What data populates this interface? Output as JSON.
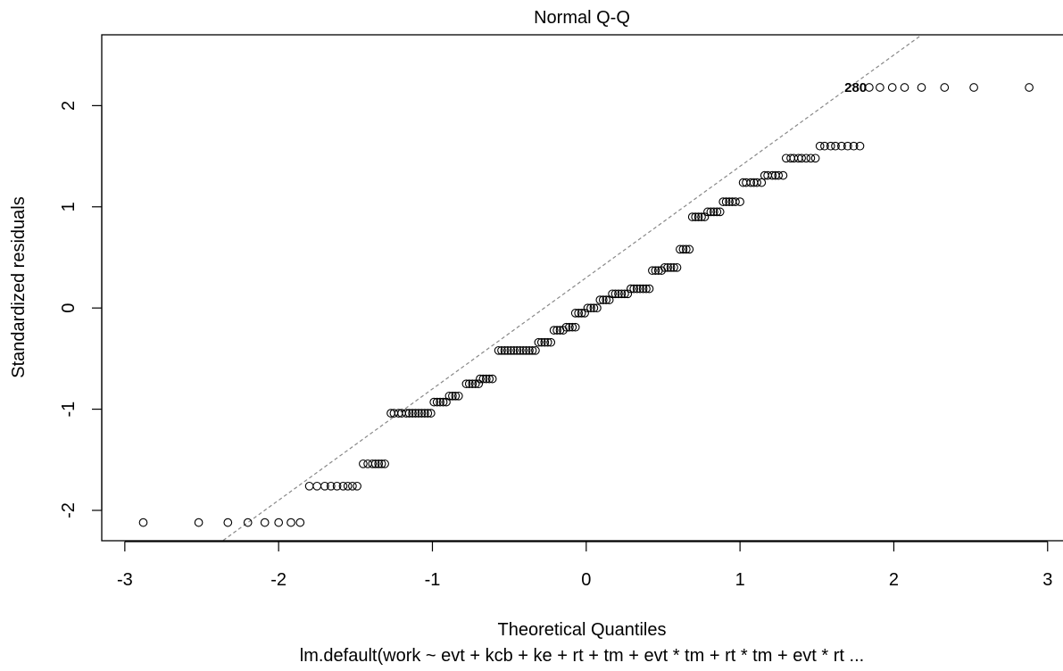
{
  "chart_data": {
    "type": "scatter",
    "title": "Normal Q-Q",
    "xlabel": "Theoretical Quantiles",
    "ylabel": "Standardized residuals",
    "caption": "lm.default(work ~ evt + kcb + ke + rt + tm + evt * tm + rt * tm + evt * rt  ...",
    "xlim": [
      -3.15,
      3.1
    ],
    "ylim": [
      -2.3,
      2.7
    ],
    "xticks": [
      -3,
      -2,
      -1,
      0,
      1,
      2,
      3
    ],
    "xtick_labels": [
      "-3",
      "-2",
      "-1",
      "0",
      "1",
      "2",
      "3"
    ],
    "yticks": [
      -2,
      -1,
      0,
      1,
      2
    ],
    "ytick_labels": [
      "-2",
      "-1",
      "0",
      "1",
      "2"
    ],
    "grid": false,
    "legend": "none",
    "reference_line": {
      "style": "dashed",
      "color": "#888888",
      "intercept": 0.3,
      "slope": 1.1
    },
    "point_labels": [
      {
        "text": "280",
        "x": 1.83,
        "y": 2.18
      }
    ],
    "point_groups": [
      {
        "y": -2.12,
        "x": [
          -2.88,
          -2.52,
          -2.33,
          -2.2,
          -2.09,
          -2.0,
          -1.92,
          -1.86
        ]
      },
      {
        "y": -1.76,
        "x": [
          -1.8,
          -1.75,
          -1.7,
          -1.66,
          -1.62,
          -1.58,
          -1.55,
          -1.52,
          -1.49
        ]
      },
      {
        "y": -1.54,
        "x": [
          -1.45,
          -1.42,
          -1.39,
          -1.37,
          -1.35,
          -1.33,
          -1.31
        ]
      },
      {
        "y": -1.04,
        "x": [
          -1.27,
          -1.25,
          -1.22,
          -1.2,
          -1.17,
          -1.15,
          -1.13,
          -1.11,
          -1.09,
          -1.07,
          -1.05,
          -1.03,
          -1.01
        ]
      },
      {
        "y": -0.93,
        "x": [
          -0.99,
          -0.97,
          -0.95,
          -0.93,
          -0.91
        ]
      },
      {
        "y": -0.87,
        "x": [
          -0.89,
          -0.87,
          -0.85,
          -0.83
        ]
      },
      {
        "y": -0.75,
        "x": [
          -0.78,
          -0.76,
          -0.74,
          -0.72,
          -0.7
        ]
      },
      {
        "y": -0.7,
        "x": [
          -0.69,
          -0.67,
          -0.65,
          -0.63,
          -0.61
        ]
      },
      {
        "y": -0.42,
        "x": [
          -0.57,
          -0.55,
          -0.53,
          -0.51,
          -0.49,
          -0.47,
          -0.45,
          -0.43,
          -0.41,
          -0.39,
          -0.37,
          -0.35,
          -0.33
        ]
      },
      {
        "y": -0.34,
        "x": [
          -0.31,
          -0.29,
          -0.27,
          -0.25,
          -0.23
        ]
      },
      {
        "y": -0.22,
        "x": [
          -0.21,
          -0.19,
          -0.17,
          -0.15
        ]
      },
      {
        "y": -0.19,
        "x": [
          -0.13,
          -0.11,
          -0.09,
          -0.07
        ]
      },
      {
        "y": -0.05,
        "x": [
          -0.07,
          -0.05,
          -0.03,
          -0.01
        ]
      },
      {
        "y": 0.0,
        "x": [
          0.01,
          0.03,
          0.05,
          0.07
        ]
      },
      {
        "y": 0.08,
        "x": [
          0.09,
          0.11,
          0.13,
          0.15
        ]
      },
      {
        "y": 0.14,
        "x": [
          0.17,
          0.19,
          0.21,
          0.23,
          0.25,
          0.27
        ]
      },
      {
        "y": 0.19,
        "x": [
          0.29,
          0.31,
          0.33,
          0.35,
          0.37,
          0.39,
          0.41
        ]
      },
      {
        "y": 0.37,
        "x": [
          0.43,
          0.45,
          0.47,
          0.49
        ]
      },
      {
        "y": 0.4,
        "x": [
          0.51,
          0.53,
          0.55,
          0.57,
          0.59
        ]
      },
      {
        "y": 0.58,
        "x": [
          0.61,
          0.63,
          0.65,
          0.67
        ]
      },
      {
        "y": 0.9,
        "x": [
          0.69,
          0.71,
          0.73,
          0.75,
          0.77
        ]
      },
      {
        "y": 0.95,
        "x": [
          0.79,
          0.81,
          0.83,
          0.85,
          0.87
        ]
      },
      {
        "y": 1.05,
        "x": [
          0.89,
          0.91,
          0.93,
          0.95,
          0.97,
          1.0
        ]
      },
      {
        "y": 1.24,
        "x": [
          1.02,
          1.04,
          1.07,
          1.09,
          1.11,
          1.14
        ]
      },
      {
        "y": 1.31,
        "x": [
          1.16,
          1.18,
          1.21,
          1.23,
          1.25,
          1.28
        ]
      },
      {
        "y": 1.48,
        "x": [
          1.3,
          1.33,
          1.35,
          1.38,
          1.4,
          1.43,
          1.46,
          1.49
        ]
      },
      {
        "y": 1.6,
        "x": [
          1.52,
          1.55,
          1.59,
          1.62,
          1.66,
          1.7,
          1.74,
          1.78
        ]
      },
      {
        "y": 2.18,
        "x": [
          1.84,
          1.91,
          1.99,
          2.07,
          2.18,
          2.33,
          2.52,
          2.88
        ]
      }
    ]
  }
}
